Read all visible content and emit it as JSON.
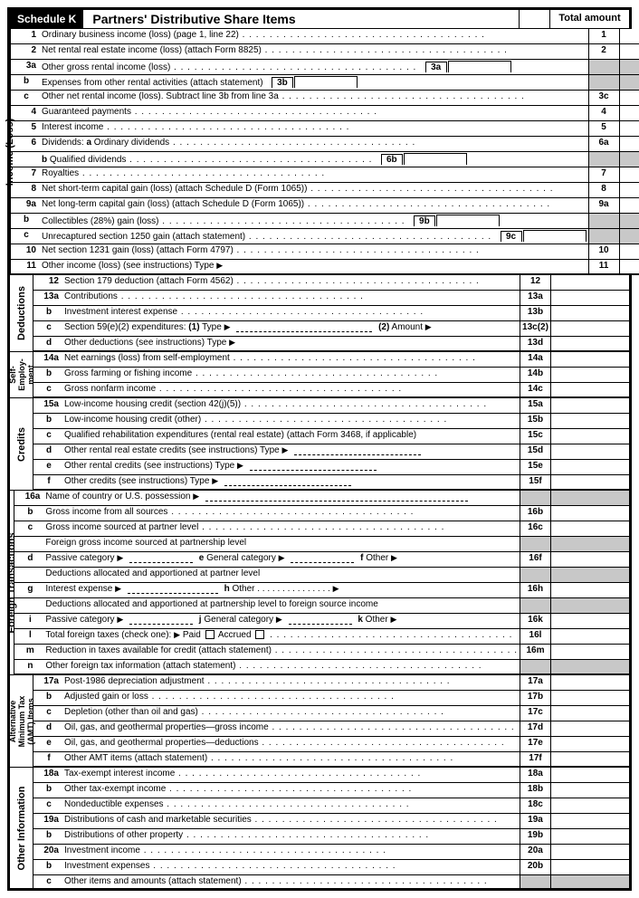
{
  "header": {
    "schedule": "Schedule K",
    "title": "Partners' Distributive Share Items",
    "total": "Total amount"
  },
  "sections": [
    {
      "label": "Income (Loss)",
      "rows": [
        {
          "n": "1",
          "sub": false,
          "d": "Ordinary business income (loss) (page 1, line 22)",
          "dots": true,
          "b": "1"
        },
        {
          "n": "2",
          "sub": false,
          "d": "Net rental real estate income (loss) (attach Form 8825)",
          "dots": true,
          "b": "2"
        },
        {
          "n": "3a",
          "sub": false,
          "d": "Other gross rental income (loss)",
          "dots": true,
          "ib": "3a",
          "grey": true
        },
        {
          "n": "b",
          "sub": true,
          "d": "Expenses from other rental activities (attach statement)",
          "ib": "3b",
          "grey": true
        },
        {
          "n": "c",
          "sub": true,
          "d": "Other net rental income (loss). Subtract line 3b from line 3a",
          "dots": true,
          "b": "3c"
        },
        {
          "n": "4",
          "sub": false,
          "d": "Guaranteed payments",
          "dots": true,
          "b": "4"
        },
        {
          "n": "5",
          "sub": false,
          "d": "Interest income",
          "dots": true,
          "b": "5"
        },
        {
          "n": "6",
          "sub": false,
          "d": "Dividends:     <b>a</b>    Ordinary dividends",
          "dots": true,
          "b": "6a"
        },
        {
          "n": "",
          "sub": true,
          "d": "                       <b>b</b>    Qualified dividends",
          "dots": true,
          "ib": "6b",
          "grey": true
        },
        {
          "n": "7",
          "sub": false,
          "d": "Royalties",
          "dots": true,
          "b": "7"
        },
        {
          "n": "8",
          "sub": false,
          "d": "Net short-term capital gain (loss) (attach Schedule D (Form 1065))",
          "dots": true,
          "b": "8"
        },
        {
          "n": "9a",
          "sub": false,
          "d": "Net long-term capital gain (loss) (attach Schedule D (Form 1065))",
          "dots": true,
          "b": "9a"
        },
        {
          "n": "b",
          "sub": true,
          "d": "Collectibles (28%) gain (loss)",
          "dots": true,
          "ib": "9b",
          "grey": true
        },
        {
          "n": "c",
          "sub": true,
          "d": "Unrecaptured section 1250 gain (attach statement)",
          "dots": true,
          "ib": "9c",
          "grey": true
        },
        {
          "n": "10",
          "sub": false,
          "d": "Net section 1231 gain (loss) (attach Form 4797)",
          "dots": true,
          "b": "10"
        },
        {
          "n": "11",
          "sub": false,
          "d": "Other income (loss) (see instructions)    Type <span class='arrow'></span>",
          "b": "11",
          "thick": true
        }
      ]
    },
    {
      "label": "Deductions",
      "rows": [
        {
          "n": "12",
          "sub": false,
          "d": "Section 179 deduction (attach Form 4562)",
          "dots": true,
          "b": "12"
        },
        {
          "n": "13a",
          "sub": false,
          "d": "Contributions",
          "dots": true,
          "b": "13a"
        },
        {
          "n": "b",
          "sub": true,
          "d": "Investment interest expense",
          "dots": true,
          "b": "13b"
        },
        {
          "n": "c",
          "sub": true,
          "d": "Section 59(e)(2) expenditures:      <b>(1)</b>  Type <span class='arrow'></span> <span class='dashline' style='min-width:150px'></span>    <b>(2)</b>  Amount <span class='arrow'></span>",
          "b": "13c(2)"
        },
        {
          "n": "d",
          "sub": true,
          "d": "Other deductions (see instructions)    Type <span class='arrow'></span>",
          "b": "13d",
          "thick": true
        }
      ]
    },
    {
      "label": "Self-\nEmploy-\nment",
      "small": true,
      "rows": [
        {
          "n": "14a",
          "sub": false,
          "d": "Net earnings (loss) from self-employment",
          "dots": true,
          "b": "14a"
        },
        {
          "n": "b",
          "sub": true,
          "d": "Gross farming or fishing income",
          "dots": true,
          "b": "14b"
        },
        {
          "n": "c",
          "sub": true,
          "d": "Gross nonfarm income",
          "dots": true,
          "b": "14c",
          "thick": true
        }
      ]
    },
    {
      "label": "Credits",
      "rows": [
        {
          "n": "15a",
          "sub": false,
          "d": "Low-income housing credit (section 42(j)(5))",
          "dots": true,
          "b": "15a"
        },
        {
          "n": "b",
          "sub": true,
          "d": "Low-income housing credit (other)",
          "dots": true,
          "b": "15b"
        },
        {
          "n": "c",
          "sub": true,
          "d": "Qualified rehabilitation expenditures (rental real estate) (attach Form 3468, if applicable)",
          "b": "15c"
        },
        {
          "n": "d",
          "sub": true,
          "d": "Other rental real estate credits (see instructions)         Type <span class='arrow'></span> <span class='dashline' style='min-width:140px'></span>",
          "b": "15d"
        },
        {
          "n": "e",
          "sub": true,
          "d": "Other rental credits (see instructions)                           Type <span class='arrow'></span> <span class='dashline' style='min-width:140px'></span>",
          "b": "15e"
        },
        {
          "n": "f",
          "sub": true,
          "d": "Other credits (see instructions)                                       Type <span class='arrow'></span> <span class='dashline' style='min-width:140px'></span>",
          "b": "15f",
          "thick": true
        }
      ]
    },
    {
      "label": "Foreign Transactions",
      "rows": [
        {
          "n": "16a",
          "sub": false,
          "d": "Name of country or U.S. possession <span class='arrow'></span> <span class='dashline' style='min-width:290px'></span>",
          "grey": true
        },
        {
          "n": "b",
          "sub": true,
          "d": "Gross income from all sources",
          "dots": true,
          "b": "16b"
        },
        {
          "n": "c",
          "sub": true,
          "d": "Gross income sourced at partner level",
          "dots": true,
          "b": "16c"
        },
        {
          "n": "",
          "sub": true,
          "d": "Foreign gross income sourced at partnership level",
          "grey": true
        },
        {
          "n": "d",
          "sub": true,
          "d": "Passive category <span class='arrow'></span> <span class='dashline' style='min-width:70px'></span>  <b>e</b>  General category <span class='arrow'></span> <span class='dashline' style='min-width:70px'></span>   <b>f</b>  Other <span class='arrow'></span>",
          "b": "16f"
        },
        {
          "n": "",
          "sub": true,
          "d": "Deductions allocated and apportioned at partner level",
          "grey": true
        },
        {
          "n": "g",
          "sub": true,
          "d": "Interest expense <span class='arrow'></span> <span class='dashline' style='min-width:100px'></span>   <b>h</b>  Other   .   .   .   .   .   .   .   .   .   .   .   .   .   .   .   <span class='arrow'></span>",
          "b": "16h"
        },
        {
          "n": "",
          "sub": true,
          "d": "Deductions allocated and apportioned at partnership level to foreign source income",
          "grey": true
        },
        {
          "n": "i",
          "sub": true,
          "d": "Passive category <span class='arrow'></span> <span class='dashline' style='min-width:70px'></span>  <b>j</b>  General category <span class='arrow'></span> <span class='dashline' style='min-width:70px'></span>   <b>k</b>  Other <span class='arrow'></span>",
          "b": "16k"
        },
        {
          "n": "l",
          "sub": true,
          "d": "Total foreign taxes (check one): <span class='arrow'></span>   Paid  <span class='cb'></span>    Accrued  <span class='cb'></span>",
          "dots": true,
          "b": "16l"
        },
        {
          "n": "m",
          "sub": true,
          "d": "Reduction in taxes available for credit (attach statement)",
          "dots": true,
          "b": "16m"
        },
        {
          "n": "n",
          "sub": true,
          "d": "Other foreign tax information (attach statement)",
          "dots": true,
          "grey": true,
          "thick": true
        }
      ]
    },
    {
      "label": "Alternative\nMinimum Tax\n(AMT) Items",
      "small": true,
      "rows": [
        {
          "n": "17a",
          "sub": false,
          "d": "Post-1986 depreciation adjustment",
          "dots": true,
          "b": "17a"
        },
        {
          "n": "b",
          "sub": true,
          "d": "Adjusted gain or loss",
          "dots": true,
          "b": "17b"
        },
        {
          "n": "c",
          "sub": true,
          "d": "Depletion (other than oil and gas)",
          "dots": true,
          "b": "17c"
        },
        {
          "n": "d",
          "sub": true,
          "d": "Oil, gas, and geothermal properties—gross income",
          "dots": true,
          "b": "17d"
        },
        {
          "n": "e",
          "sub": true,
          "d": "Oil, gas, and geothermal properties—deductions",
          "dots": true,
          "b": "17e"
        },
        {
          "n": "f",
          "sub": true,
          "d": "Other AMT items (attach statement)",
          "dots": true,
          "b": "17f",
          "thick": true
        }
      ]
    },
    {
      "label": "Other Information",
      "rows": [
        {
          "n": "18a",
          "sub": false,
          "d": "Tax-exempt interest income",
          "dots": true,
          "b": "18a"
        },
        {
          "n": "b",
          "sub": true,
          "d": "Other tax-exempt income",
          "dots": true,
          "b": "18b"
        },
        {
          "n": "c",
          "sub": true,
          "d": "Nondeductible expenses",
          "dots": true,
          "b": "18c"
        },
        {
          "n": "19a",
          "sub": false,
          "d": "Distributions of cash and marketable securities",
          "dots": true,
          "b": "19a"
        },
        {
          "n": "b",
          "sub": true,
          "d": "Distributions of other property",
          "dots": true,
          "b": "19b"
        },
        {
          "n": "20a",
          "sub": false,
          "d": "Investment income",
          "dots": true,
          "b": "20a"
        },
        {
          "n": "b",
          "sub": true,
          "d": "Investment expenses",
          "dots": true,
          "b": "20b"
        },
        {
          "n": "c",
          "sub": true,
          "d": "Other items and amounts (attach statement)",
          "dots": true,
          "grey": true,
          "thick": true,
          "last": true
        }
      ]
    }
  ]
}
